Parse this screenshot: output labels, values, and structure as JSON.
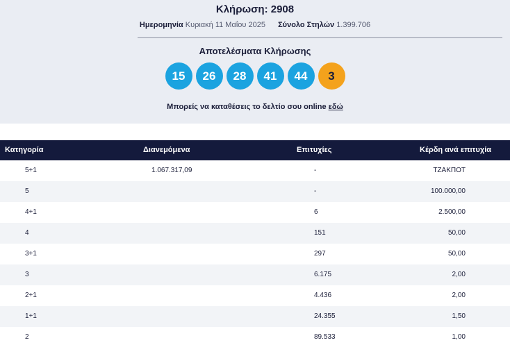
{
  "header": {
    "draw_label": "Κλήρωση: 2908",
    "date_label": "Ημερομηνία",
    "date_value": "Κυριακή 11 Μαΐου 2025",
    "columns_label": "Σύνολο Στηλών",
    "columns_value": "1.399.706"
  },
  "results": {
    "title": "Αποτελέσματα Κλήρωσης",
    "numbers": [
      "15",
      "26",
      "28",
      "41",
      "44"
    ],
    "joker": "3",
    "online_text": "Μπορείς να καταθέσεις το δελτίο σου online",
    "online_link": "εδώ",
    "colors": {
      "main_ball": "#1ba3e0",
      "joker_ball": "#f4a21c",
      "table_header": "#141a3c"
    }
  },
  "table": {
    "headers": [
      "Κατηγορία",
      "Διανεμόμενα",
      "Επιτυχίες",
      "Κέρδη ανά επιτυχία"
    ],
    "rows": [
      [
        "5+1",
        "1.067.317,09",
        "-",
        "ΤΖΑΚΠΟΤ"
      ],
      [
        "5",
        "",
        "-",
        "100.000,00"
      ],
      [
        "4+1",
        "",
        "6",
        "2.500,00"
      ],
      [
        "4",
        "",
        "151",
        "50,00"
      ],
      [
        "3+1",
        "",
        "297",
        "50,00"
      ],
      [
        "3",
        "",
        "6.175",
        "2,00"
      ],
      [
        "2+1",
        "",
        "4.436",
        "2,00"
      ],
      [
        "1+1",
        "",
        "24.355",
        "1,50"
      ],
      [
        "2",
        "",
        "89.533",
        "1,00"
      ]
    ]
  }
}
